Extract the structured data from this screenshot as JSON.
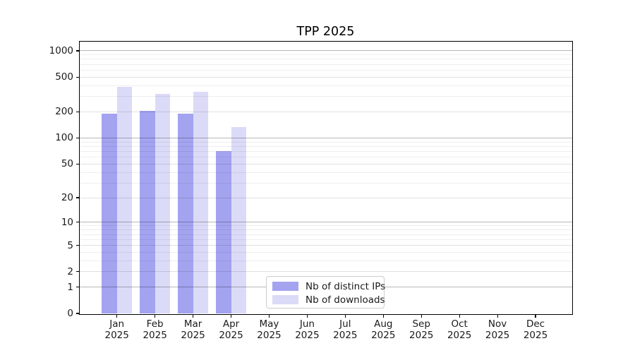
{
  "header": {
    "title": "TPP 2025"
  },
  "legend": {
    "items": [
      {
        "label": "Nb of distinct IPs",
        "color": "#a3a3f0"
      },
      {
        "label": "Nb of downloads",
        "color": "#dbdbf8"
      }
    ]
  },
  "chart_data": {
    "type": "bar",
    "title": "TPP 2025",
    "x": [
      "Jan 2025",
      "Feb 2025",
      "Mar 2025",
      "Apr 2025",
      "May 2025",
      "Jun 2025",
      "Jul 2025",
      "Aug 2025",
      "Sep 2025",
      "Oct 2025",
      "Nov 2025",
      "Dec 2025"
    ],
    "series": [
      {
        "name": "Nb of distinct IPs",
        "color": "#a3a3f0",
        "values": [
          190,
          205,
          190,
          70,
          null,
          null,
          null,
          null,
          null,
          null,
          null,
          null
        ]
      },
      {
        "name": "Nb of downloads",
        "color": "#dbdbf8",
        "values": [
          390,
          320,
          340,
          133,
          null,
          null,
          null,
          null,
          null,
          null,
          null,
          null
        ]
      }
    ],
    "yscale": "log1p",
    "y_ticks": [
      0,
      1,
      2,
      5,
      10,
      20,
      50,
      100,
      200,
      500,
      1000
    ],
    "y_minor_ticks": [
      3,
      4,
      6,
      7,
      8,
      9,
      30,
      40,
      60,
      70,
      80,
      90,
      300,
      400,
      600,
      700,
      800,
      900
    ],
    "ylim": [
      0,
      1260
    ],
    "grid": true,
    "legend_position": "lower center",
    "axis_color": "#000000",
    "major_grid_color": "rgba(0,0,0,0.28)",
    "mid_grid_color": "rgba(0,0,0,0.12)",
    "minor_grid_color": "rgba(0,0,0,0.065)"
  }
}
